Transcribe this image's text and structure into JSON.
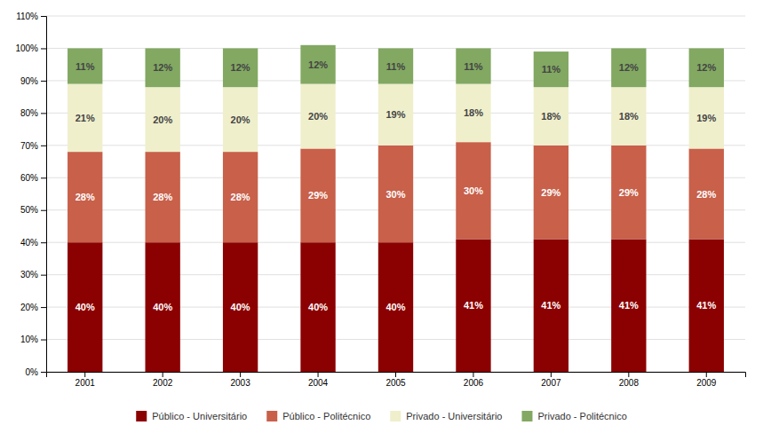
{
  "chart_data": {
    "type": "bar",
    "stacked": true,
    "data_labels": true,
    "grid": true,
    "legend": "bottom",
    "categories": [
      "2001",
      "2002",
      "2003",
      "2004",
      "2005",
      "2006",
      "2007",
      "2008",
      "2009"
    ],
    "series": [
      {
        "name": "Público - Universitário",
        "color": "#8B0000",
        "values": [
          40,
          40,
          40,
          40,
          40,
          41,
          41,
          41,
          41
        ],
        "value_labels": [
          "40%",
          "40%",
          "40%",
          "40%",
          "40%",
          "41%",
          "41%",
          "41%",
          "41%"
        ]
      },
      {
        "name": "Público - Politécnico",
        "color": "#C8604A",
        "values": [
          28,
          28,
          28,
          29,
          30,
          30,
          29,
          29,
          28
        ],
        "value_labels": [
          "28%",
          "28%",
          "28%",
          "29%",
          "30%",
          "30%",
          "29%",
          "29%",
          "28%"
        ]
      },
      {
        "name": "Privado - Universitário",
        "color": "#EFEFCC",
        "values": [
          21,
          20,
          20,
          20,
          19,
          18,
          18,
          18,
          19
        ],
        "value_labels": [
          "21%",
          "20%",
          "20%",
          "20%",
          "19%",
          "18%",
          "18%",
          "18%",
          "19%"
        ]
      },
      {
        "name": "Privado - Politécnico",
        "color": "#82A862",
        "values": [
          11,
          12,
          12,
          12,
          11,
          11,
          11,
          12,
          12
        ],
        "value_labels": [
          "11%",
          "12%",
          "12%",
          "12%",
          "11%",
          "11%",
          "11%",
          "12%",
          "12%"
        ]
      }
    ],
    "ylim": [
      0,
      110
    ],
    "yticks": [
      {
        "value": 0,
        "label": "0%"
      },
      {
        "value": 10,
        "label": "10%"
      },
      {
        "value": 20,
        "label": "20%"
      },
      {
        "value": 30,
        "label": "30%"
      },
      {
        "value": 40,
        "label": "40%"
      },
      {
        "value": 50,
        "label": "50%"
      },
      {
        "value": 60,
        "label": "60%"
      },
      {
        "value": 70,
        "label": "70%"
      },
      {
        "value": 80,
        "label": "80%"
      },
      {
        "value": 90,
        "label": "90%"
      },
      {
        "value": 100,
        "label": "100%"
      },
      {
        "value": 110,
        "label": "110%"
      }
    ]
  }
}
